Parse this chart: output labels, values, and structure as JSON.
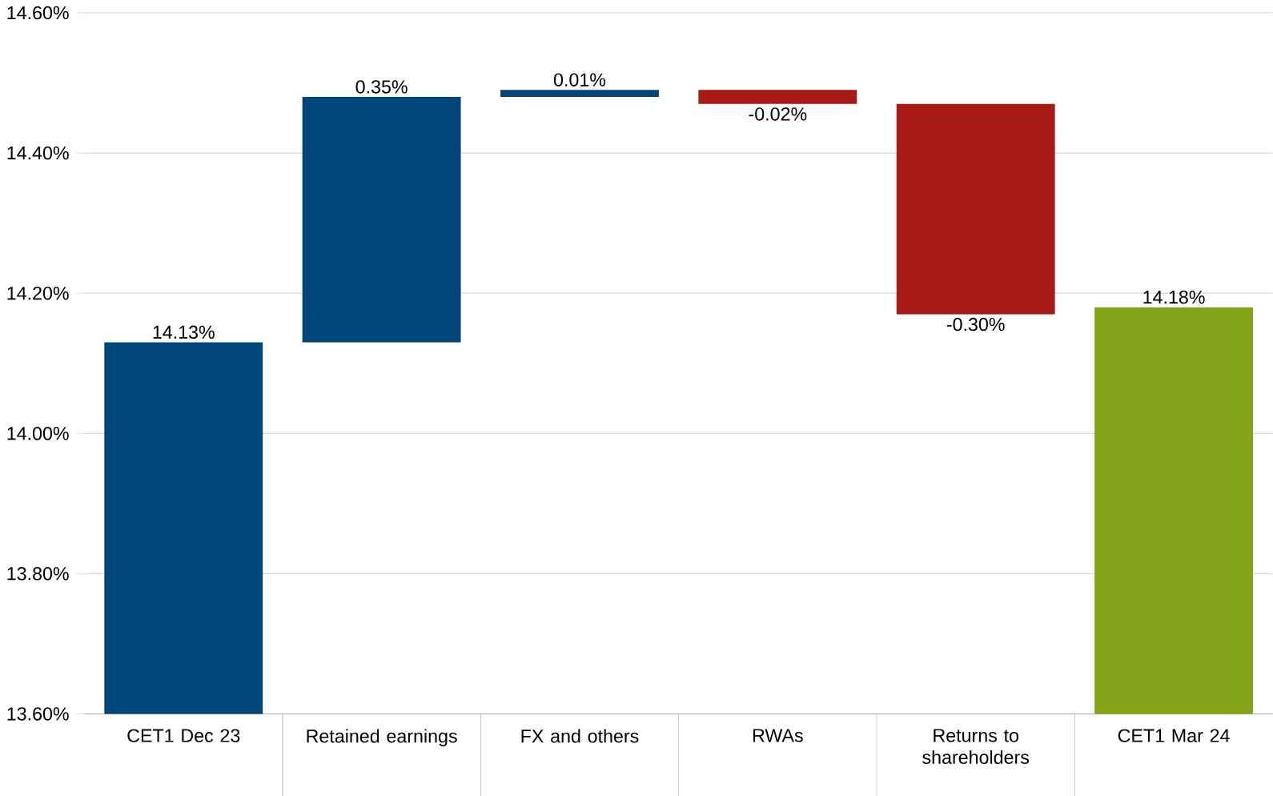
{
  "chart_data": {
    "type": "bar",
    "categories": [
      "CET1 Dec 23",
      "Retained earnings",
      "FX and others",
      "RWAs",
      "Returns to shareholders",
      "CET1 Mar 24"
    ],
    "values": [
      14.13,
      0.35,
      0.01,
      -0.02,
      -0.3,
      14.18
    ],
    "base": [
      null,
      14.13,
      14.48,
      14.49,
      14.47,
      null
    ],
    "colors": [
      "#00467a",
      "#00467a",
      "#00467a",
      "#a81a16",
      "#a81a16",
      "#86a41a"
    ],
    "value_labels": [
      "14.13%",
      "0.35%",
      "0.01%",
      "-0.02%",
      "-0.30%",
      "14.18%"
    ],
    "ylim": [
      13.6,
      14.6
    ],
    "yticks": [
      {
        "value": 13.6,
        "label": "13.60%"
      },
      {
        "value": 13.8,
        "label": "13.80%"
      },
      {
        "value": 14.0,
        "label": "14.00%"
      },
      {
        "value": 14.2,
        "label": "14.20%"
      },
      {
        "value": 14.4,
        "label": "14.40%"
      },
      {
        "value": 14.6,
        "label": "14.60%"
      }
    ],
    "grid": "y"
  }
}
